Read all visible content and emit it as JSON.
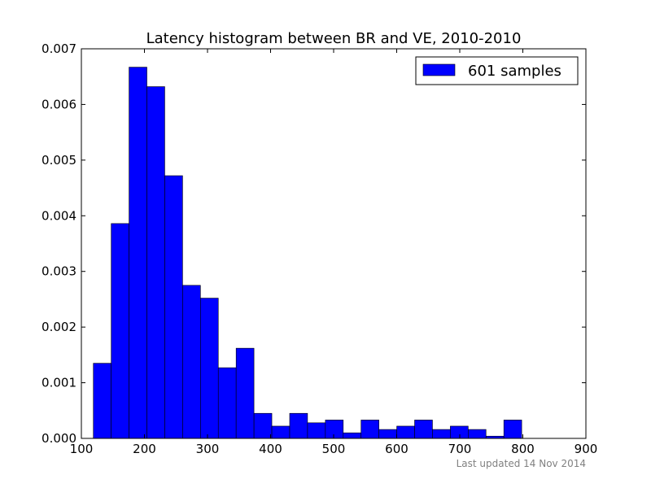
{
  "chart_data": {
    "type": "bar",
    "title": "Latency histogram between BR and VE, 2010-2010",
    "xlabel": "",
    "ylabel": "",
    "xlim": [
      100,
      900
    ],
    "ylim": [
      0,
      0.007
    ],
    "x_ticks": [
      "100",
      "200",
      "300",
      "400",
      "500",
      "600",
      "700",
      "800",
      "900"
    ],
    "y_ticks": [
      "0.000",
      "0.001",
      "0.002",
      "0.003",
      "0.004",
      "0.005",
      "0.006",
      "0.007"
    ],
    "bar_color": "#0000ff",
    "legend_position": "top-right",
    "grid": false,
    "series": [
      {
        "name": "601 samples",
        "bins": [
          [
            119,
            147.3,
            0.00135
          ],
          [
            147.3,
            175.6,
            0.00386
          ],
          [
            175.6,
            203.9,
            0.00667
          ],
          [
            203.9,
            232.2,
            0.00632
          ],
          [
            232.2,
            260.5,
            0.00472
          ],
          [
            260.5,
            288.8,
            0.00275
          ],
          [
            288.8,
            317.1,
            0.00252
          ],
          [
            317.1,
            345.4,
            0.00127
          ],
          [
            345.4,
            373.7,
            0.00162
          ],
          [
            373.7,
            402.0,
            0.00045
          ],
          [
            402.0,
            430.3,
            0.00022
          ],
          [
            430.3,
            458.6,
            0.00045
          ],
          [
            458.6,
            486.9,
            0.00028
          ],
          [
            486.9,
            515.2,
            0.00033
          ],
          [
            515.2,
            543.5,
            0.0001
          ],
          [
            543.5,
            571.8,
            0.00033
          ],
          [
            571.8,
            600.1,
            0.00016
          ],
          [
            600.1,
            628.4,
            0.00022
          ],
          [
            628.4,
            656.7,
            0.00033
          ],
          [
            656.7,
            685.0,
            0.00016
          ],
          [
            685.0,
            713.3,
            0.00022
          ],
          [
            713.3,
            741.6,
            0.00016
          ],
          [
            741.6,
            769.9,
            4e-05
          ],
          [
            769.9,
            798.2,
            0.00033
          ]
        ]
      }
    ]
  },
  "footer": {
    "note": "Last updated 14 Nov 2014"
  }
}
